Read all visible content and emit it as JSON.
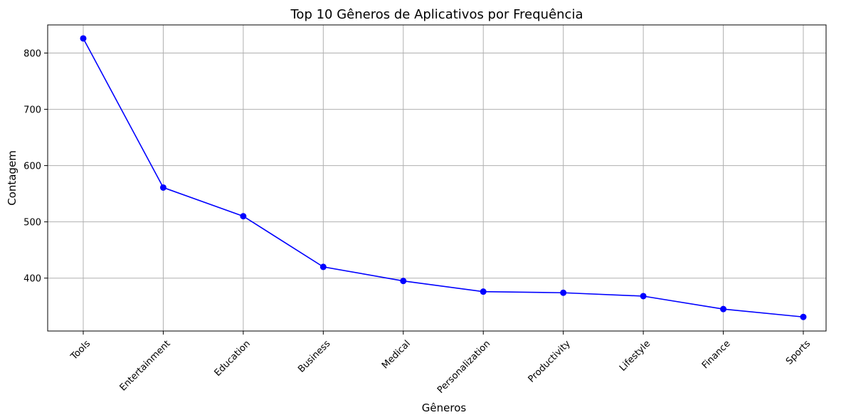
{
  "chart_data": {
    "type": "line",
    "title": "Top 10 Gêneros de Aplicativos por Frequência",
    "xlabel": "Gêneros",
    "ylabel": "Contagem",
    "categories": [
      "Tools",
      "Entertainment",
      "Education",
      "Business",
      "Medical",
      "Personalization",
      "Productivity",
      "Lifestyle",
      "Finance",
      "Sports"
    ],
    "series": [
      {
        "values": [
          826,
          561,
          510,
          420,
          395,
          376,
          374,
          368,
          345,
          331
        ],
        "color": "#0000ff",
        "marker": "circle"
      }
    ],
    "ylim": [
      306,
      850
    ],
    "yticks": [
      400,
      500,
      600,
      700,
      800
    ],
    "grid": true,
    "legend": "none"
  }
}
